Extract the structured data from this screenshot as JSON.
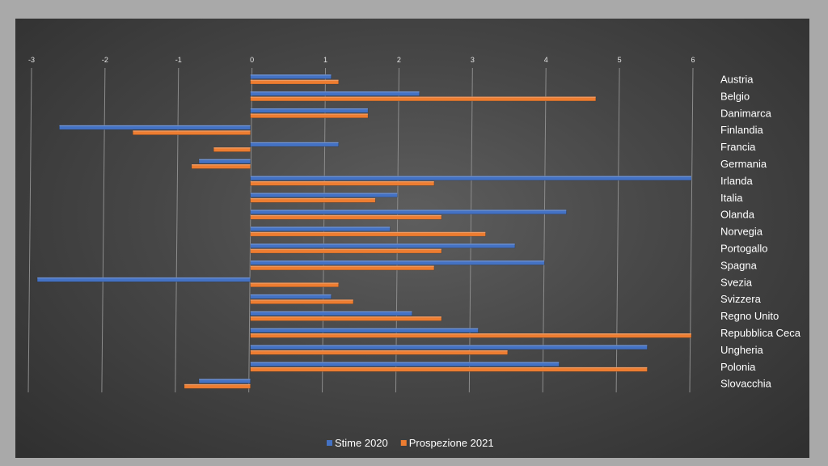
{
  "chart_data": {
    "type": "bar",
    "orientation": "horizontal",
    "categories": [
      "Austria",
      "Belgio",
      "Danimarca",
      "Finlandia",
      "Francia",
      "Germania",
      "Irlanda",
      "Italia",
      "Olanda",
      "Norvegia",
      "Portogallo",
      "Spagna",
      "Svezia",
      "Svizzera",
      "Regno Unito",
      "Repubblica Ceca",
      "Ungheria",
      "Polonia",
      "Slovacchia"
    ],
    "series": [
      {
        "name": "Stime 2020",
        "color": "#4472c4",
        "values": [
          1.1,
          2.3,
          1.6,
          -2.6,
          1.2,
          -0.7,
          6.0,
          2.0,
          4.3,
          1.9,
          3.6,
          4.0,
          -2.9,
          1.1,
          2.2,
          3.1,
          5.4,
          4.2,
          -0.7
        ]
      },
      {
        "name": "Prospezione 2021",
        "color": "#ed7d31",
        "values": [
          1.2,
          4.7,
          1.6,
          -1.6,
          -0.5,
          -0.8,
          2.5,
          1.7,
          2.6,
          3.2,
          2.6,
          2.5,
          1.2,
          1.4,
          2.6,
          6.0,
          3.5,
          5.4,
          -0.9
        ]
      }
    ],
    "xlim": [
      -3,
      6
    ],
    "xticks": [
      -3,
      -2,
      -1,
      0,
      1,
      2,
      3,
      4,
      5,
      6
    ],
    "grid": true,
    "legend_position": "bottom"
  }
}
